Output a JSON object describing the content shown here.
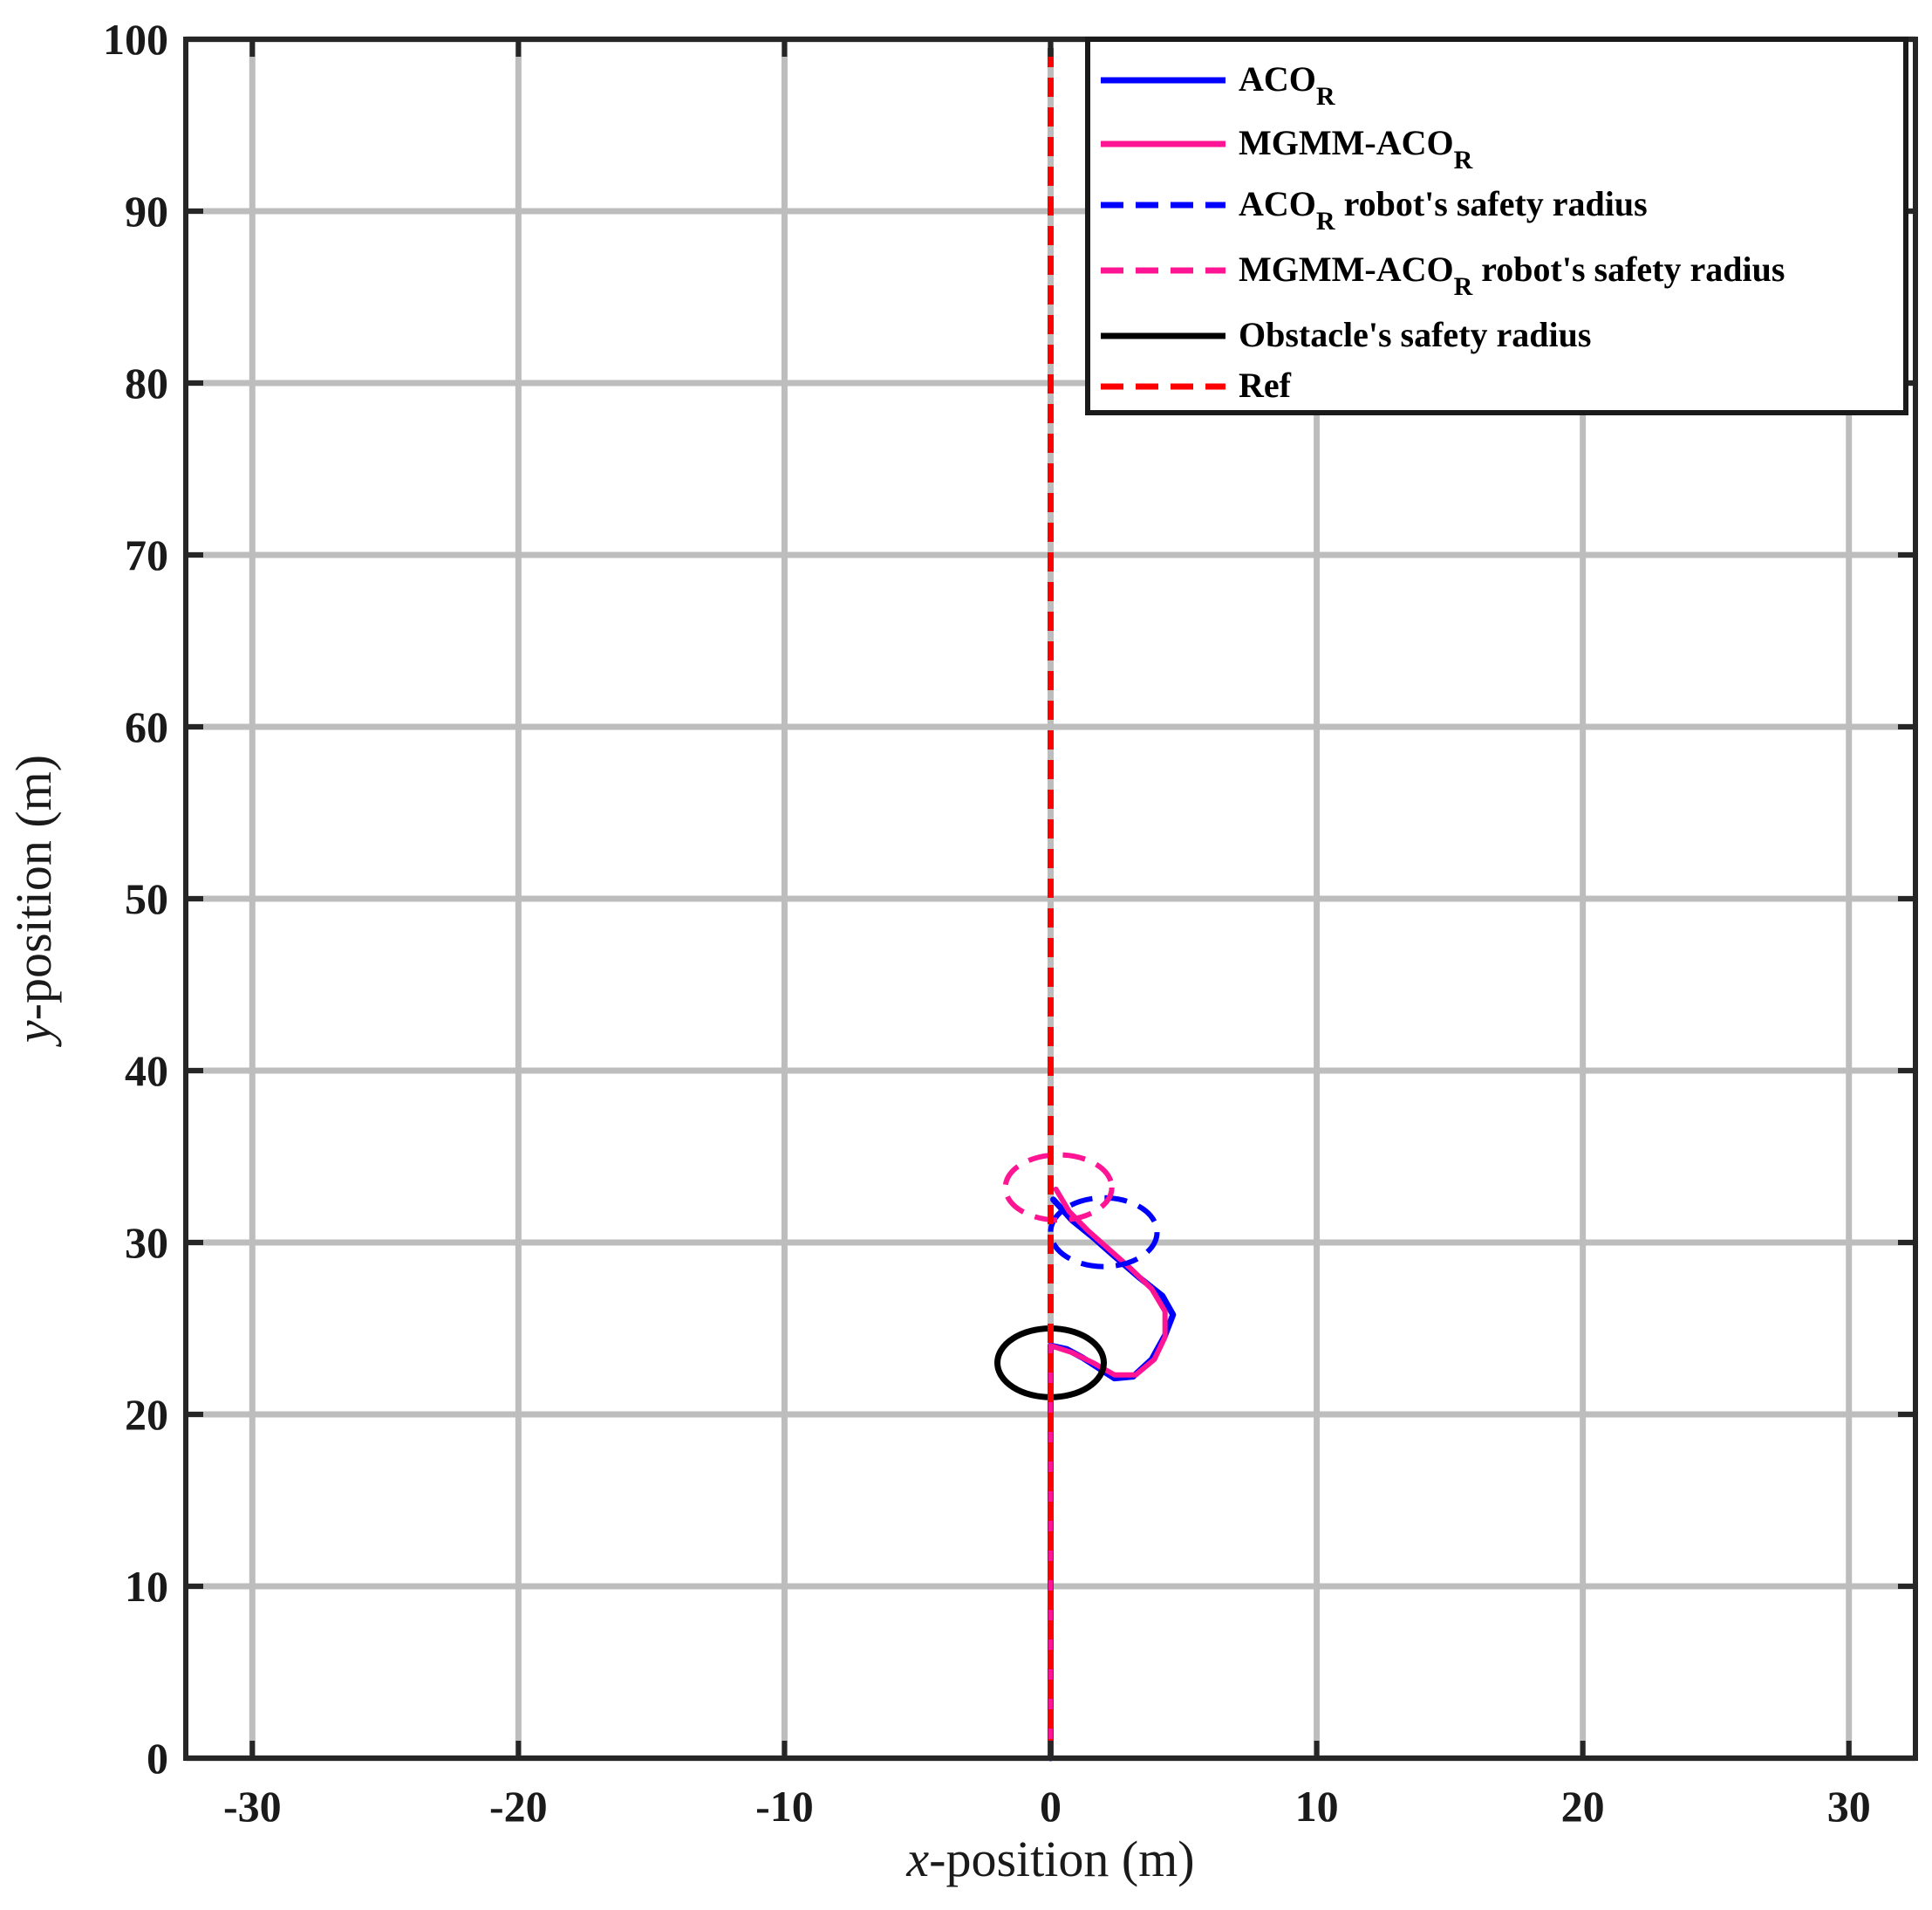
{
  "chart_data": {
    "type": "line",
    "xlabel_var": "x",
    "xlabel_rest": "-position (m)",
    "ylabel_var": "y",
    "ylabel_rest": "-position (m)",
    "xlim": [
      -32.5,
      32.5
    ],
    "ylim": [
      0,
      100
    ],
    "xticks": [
      -30,
      -20,
      -10,
      0,
      10,
      20,
      30
    ],
    "yticks": [
      0,
      10,
      20,
      30,
      40,
      50,
      60,
      70,
      80,
      90,
      100
    ],
    "grid": true,
    "legend_position": "top-right",
    "colors": {
      "aco": "#0000ff",
      "mgmm": "#ff1493",
      "obstacle": "#000000",
      "ref": "#ff0000",
      "grid": "#bdbdbd",
      "axes": "#262626"
    },
    "series": [
      {
        "name": "ACO_R",
        "style": "solid",
        "color": "#0000ff",
        "x": [
          0,
          0,
          0.6,
          1.2,
          1.9,
          2.4,
          3.1,
          3.8,
          4.3,
          4.6,
          4.2,
          3.3,
          2.4,
          1.6,
          0.8,
          0.1
        ],
        "y": [
          0,
          24.0,
          23.8,
          23.3,
          22.6,
          22.1,
          22.2,
          23.2,
          24.6,
          25.8,
          26.9,
          28.0,
          29.2,
          30.3,
          31.3,
          32.5
        ]
      },
      {
        "name": "MGMM-ACO_R",
        "style": "solid",
        "color": "#ff1493",
        "x": [
          0,
          0,
          0.8,
          1.6,
          2.4,
          3.2,
          3.9,
          4.3,
          4.3,
          3.8,
          3.0,
          2.2,
          1.4,
          0.7,
          0.2
        ],
        "y": [
          0,
          24.0,
          23.6,
          23.0,
          22.3,
          22.3,
          23.2,
          24.5,
          26.0,
          27.3,
          28.5,
          29.6,
          30.7,
          31.8,
          33.1
        ]
      },
      {
        "name": "ACO_R robot's safety radius",
        "style": "dashed",
        "color": "#0000ff",
        "cx": 2.0,
        "cy": 30.6,
        "rx": 2.0,
        "ry": 2.0
      },
      {
        "name": "MGMM-ACO_R robot's safety radius",
        "style": "dashed",
        "color": "#ff1493",
        "cx": 0.3,
        "cy": 33.2,
        "rx": 2.0,
        "ry": 1.9
      },
      {
        "name": "Obstacle's safety radius",
        "style": "solid",
        "color": "#000000",
        "cx": 0,
        "cy": 23.0,
        "rx": 2.0,
        "ry": 2.0
      },
      {
        "name": "Ref",
        "style": "dashed",
        "color": "#ff0000",
        "x": [
          0,
          0
        ],
        "y": [
          0,
          100
        ]
      }
    ],
    "legend": [
      {
        "main": "ACO",
        "sub": "R",
        "rest": "",
        "color": "#0000ff",
        "dash": false
      },
      {
        "main": "MGMM-ACO",
        "sub": "R",
        "rest": "",
        "color": "#ff1493",
        "dash": false
      },
      {
        "main": "ACO",
        "sub": "R",
        "rest": " robot's safety radius",
        "color": "#0000ff",
        "dash": true
      },
      {
        "main": "MGMM-ACO",
        "sub": "R",
        "rest": "  robot's safety radius",
        "color": "#ff1493",
        "dash": true
      },
      {
        "main": "Obstacle's safety radius",
        "sub": "",
        "rest": "",
        "color": "#000000",
        "dash": false
      },
      {
        "main": "Ref",
        "sub": "",
        "rest": "",
        "color": "#ff0000",
        "dash": true
      }
    ]
  }
}
